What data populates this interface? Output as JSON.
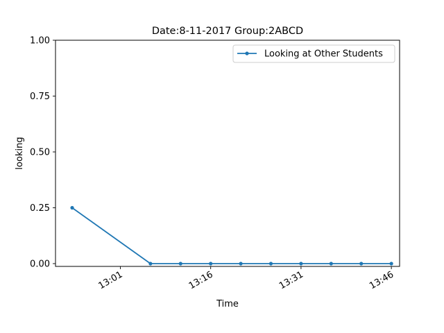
{
  "chart_data": {
    "type": "line",
    "title": "Date:8-11-2017  Group:2ABCD",
    "xlabel": "Time",
    "ylabel": "looking",
    "ylim": [
      -0.0125,
      1.0
    ],
    "xlim": [
      "12:50:14",
      "13:47:22"
    ],
    "yticks": [
      {
        "value": 0.0,
        "label": "0.00"
      },
      {
        "value": 0.25,
        "label": "0.25"
      },
      {
        "value": 0.5,
        "label": "0.50"
      },
      {
        "value": 0.75,
        "label": "0.75"
      },
      {
        "value": 1.0,
        "label": "1.00"
      }
    ],
    "xticks": [
      {
        "value": "13:01",
        "label": "13:01"
      },
      {
        "value": "13:16",
        "label": "13:16"
      },
      {
        "value": "13:31",
        "label": "13:31"
      },
      {
        "value": "13:46",
        "label": "13:46"
      }
    ],
    "legend_position": "top-right",
    "grid": false,
    "series": [
      {
        "name": "Looking at Other Students",
        "color": "#1f77b4",
        "marker": "circle",
        "x": [
          "12:53",
          "13:06",
          "13:11",
          "13:16",
          "13:21",
          "13:26",
          "13:31",
          "13:36",
          "13:41",
          "13:46"
        ],
        "y": [
          0.25,
          0.0,
          0.0,
          0.0,
          0.0,
          0.0,
          0.0,
          0.0,
          0.0,
          0.0
        ]
      }
    ]
  }
}
